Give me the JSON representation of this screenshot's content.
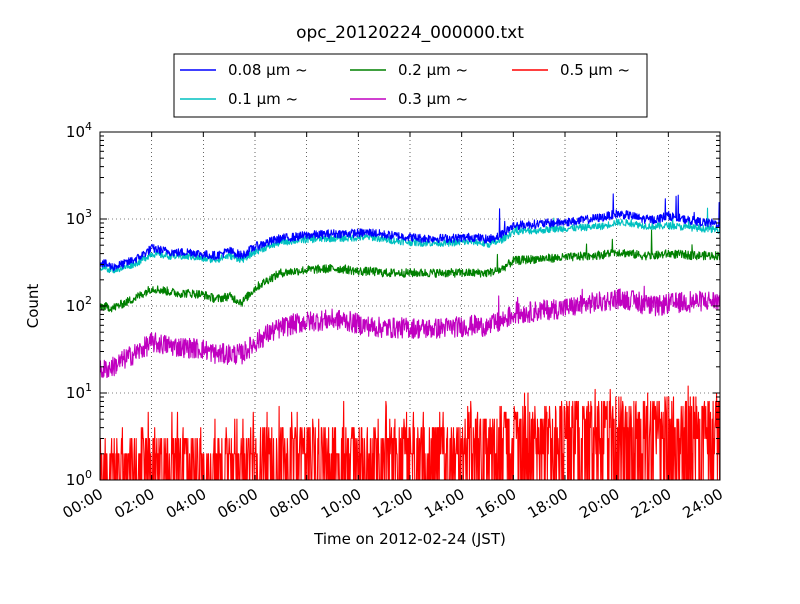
{
  "chart_data": {
    "type": "line",
    "title": "opc_20120224_000000.txt",
    "xlabel": "Time on 2012-02-24 (JST)",
    "ylabel": "Count",
    "yscale": "log",
    "grid": true,
    "legend_location": "top-center",
    "xlim": [
      "00:00",
      "24:00"
    ],
    "ylim": [
      1,
      10000
    ],
    "x_tick_labels": [
      "00:00",
      "02:00",
      "04:00",
      "06:00",
      "08:00",
      "10:00",
      "12:00",
      "14:00",
      "16:00",
      "18:00",
      "20:00",
      "22:00",
      "24:00"
    ],
    "y_ticks": [
      {
        "base": "10",
        "exp": "0"
      },
      {
        "base": "10",
        "exp": "1"
      },
      {
        "base": "10",
        "exp": "2"
      },
      {
        "base": "10",
        "exp": "3"
      },
      {
        "base": "10",
        "exp": "4"
      }
    ],
    "x": [
      "00:00",
      "00:30",
      "01:00",
      "01:30",
      "02:00",
      "02:30",
      "03:00",
      "03:30",
      "04:00",
      "04:30",
      "05:00",
      "05:30",
      "06:00",
      "06:30",
      "07:00",
      "07:30",
      "08:00",
      "08:30",
      "09:00",
      "09:30",
      "10:00",
      "10:30",
      "11:00",
      "11:30",
      "12:00",
      "12:30",
      "13:00",
      "13:30",
      "14:00",
      "14:30",
      "15:00",
      "15:30",
      "16:00",
      "16:30",
      "17:00",
      "17:30",
      "18:00",
      "18:30",
      "19:00",
      "19:30",
      "20:00",
      "20:30",
      "21:00",
      "21:30",
      "22:00",
      "22:30",
      "23:00",
      "23:30",
      "24:00"
    ],
    "series": [
      {
        "name": "0.08 μm ~",
        "color": "#0000ff",
        "values": [
          320,
          280,
          310,
          360,
          460,
          430,
          410,
          420,
          390,
          380,
          430,
          380,
          480,
          540,
          600,
          620,
          650,
          660,
          680,
          680,
          690,
          700,
          660,
          640,
          620,
          600,
          600,
          600,
          610,
          620,
          580,
          650,
          840,
          860,
          880,
          900,
          920,
          950,
          1000,
          1050,
          1150,
          1100,
          1000,
          980,
          1100,
          1000,
          950,
          900,
          880
        ]
      },
      {
        "name": "0.1 μm ~",
        "color": "#00c0c0",
        "values": [
          280,
          260,
          280,
          320,
          400,
          380,
          370,
          370,
          350,
          340,
          380,
          340,
          420,
          480,
          540,
          560,
          580,
          590,
          600,
          600,
          610,
          620,
          580,
          560,
          540,
          530,
          530,
          530,
          540,
          550,
          510,
          560,
          720,
          730,
          740,
          760,
          780,
          790,
          810,
          830,
          920,
          900,
          840,
          820,
          840,
          810,
          790,
          770,
          750
        ]
      },
      {
        "name": "0.2 μm ~",
        "color": "#008000",
        "values": [
          100,
          95,
          110,
          130,
          160,
          150,
          140,
          140,
          135,
          120,
          130,
          110,
          160,
          200,
          240,
          250,
          260,
          265,
          270,
          265,
          250,
          250,
          240,
          240,
          240,
          240,
          240,
          240,
          240,
          240,
          240,
          260,
          330,
          340,
          350,
          355,
          360,
          370,
          380,
          390,
          420,
          400,
          380,
          380,
          400,
          390,
          380,
          380,
          380
        ]
      },
      {
        "name": "0.3 μm ~",
        "color": "#c000c0",
        "values": [
          18,
          20,
          25,
          30,
          38,
          36,
          34,
          33,
          32,
          28,
          28,
          28,
          38,
          48,
          56,
          62,
          66,
          68,
          70,
          68,
          62,
          58,
          56,
          56,
          56,
          55,
          55,
          57,
          58,
          60,
          58,
          66,
          80,
          84,
          88,
          92,
          95,
          100,
          108,
          112,
          122,
          118,
          106,
          98,
          106,
          110,
          112,
          115,
          115
        ]
      },
      {
        "name": "0.5 μm ~",
        "color": "#ff0000",
        "values": [
          1.5,
          1.6,
          1.8,
          2.0,
          2.0,
          2.0,
          2.0,
          2.0,
          2.0,
          2.0,
          2.0,
          2.0,
          2.0,
          2.2,
          2.4,
          2.5,
          2.5,
          2.5,
          2.5,
          2.5,
          2.5,
          2.4,
          2.4,
          2.4,
          2.4,
          2.4,
          2.4,
          2.5,
          2.6,
          2.8,
          3.0,
          3.2,
          4.0,
          4.2,
          4.2,
          4.4,
          4.5,
          4.5,
          4.6,
          4.8,
          5.0,
          5.0,
          4.8,
          4.8,
          5.0,
          5.0,
          5.0,
          5.0,
          5.0
        ]
      }
    ]
  }
}
